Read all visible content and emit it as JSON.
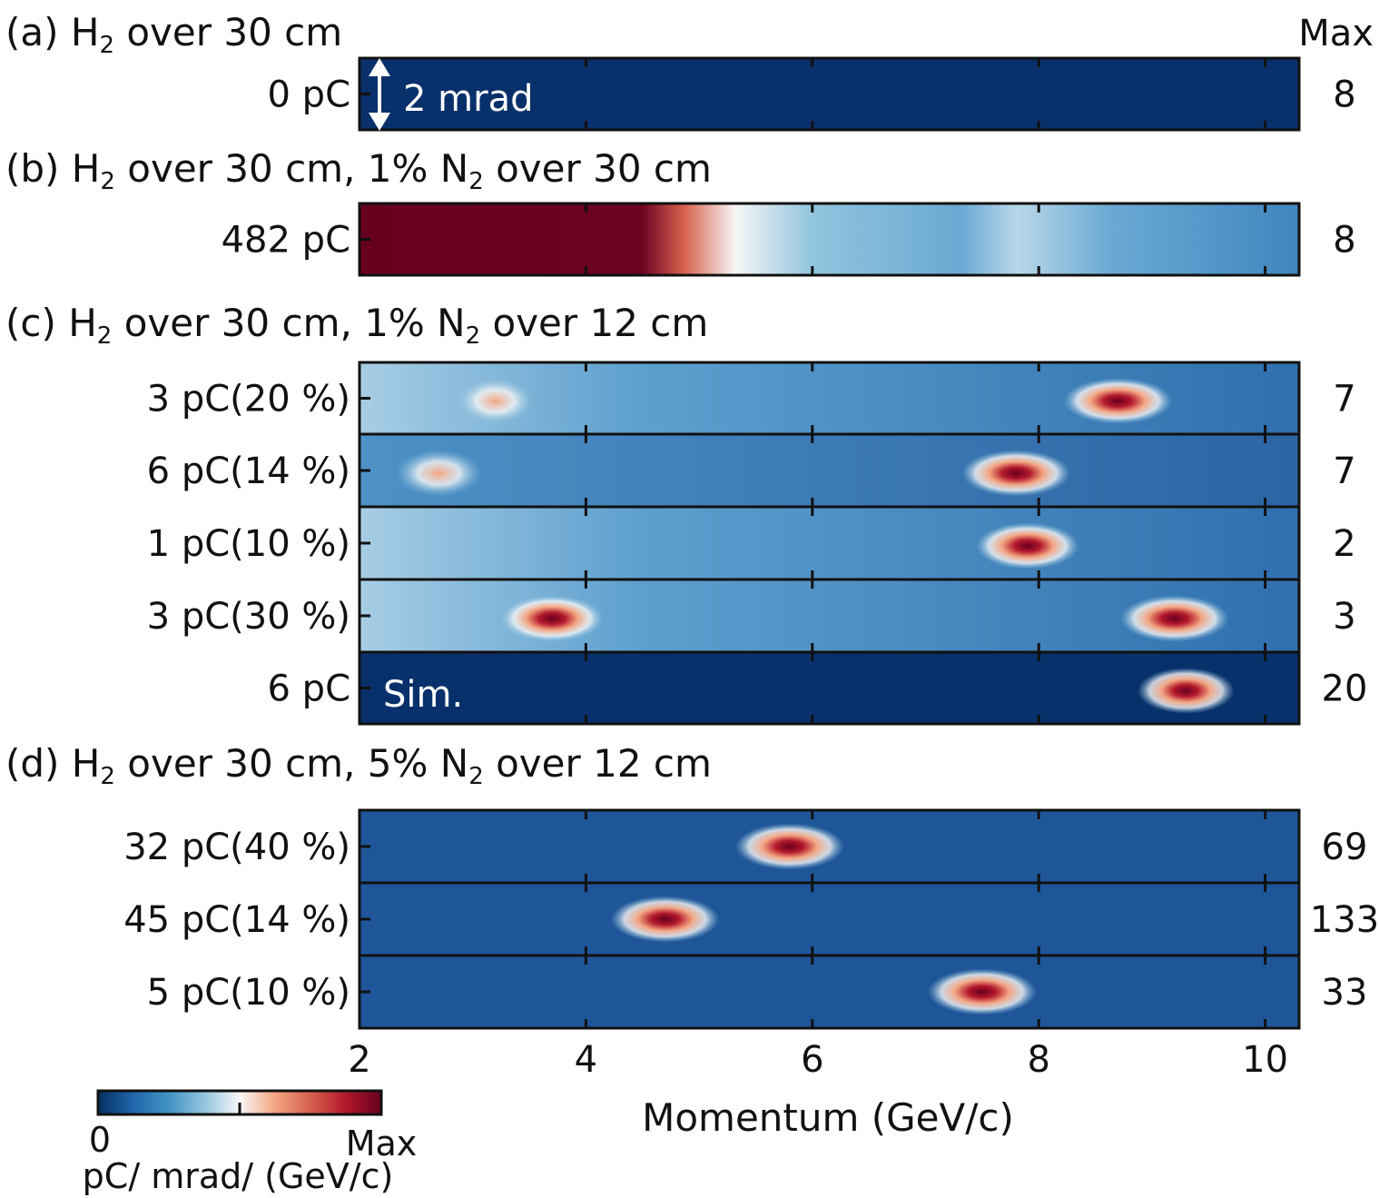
{
  "chart_data": {
    "type": "heatmap",
    "title": "",
    "xlabel": "Momentum (GeV/c)",
    "xlim": [
      2,
      10.3
    ],
    "x_ticks": [
      "2",
      "4",
      "6",
      "8",
      "10"
    ],
    "max_header": "Max",
    "colorbar": {
      "colormap": "RdBu_r",
      "colors": [
        "#053061",
        "#2166ac",
        "#4393c3",
        "#92c5de",
        "#f7f7f7",
        "#f4a582",
        "#d6604d",
        "#b2182b",
        "#67001f"
      ],
      "min_label": "0",
      "max_label": "Max",
      "label": "pC/ mrad/ (GeV/c)"
    },
    "annotations": {
      "scale_bar": "2 mrad",
      "sim": "Sim."
    },
    "sections": [
      {
        "title_parts": [
          "(a) H",
          "2",
          " over 30 cm"
        ],
        "rows": [
          {
            "label": "0 pC",
            "max": "8",
            "hotspots": []
          }
        ]
      },
      {
        "title_parts": [
          "(b) H",
          "2",
          " over 30 cm, 1% N",
          "2",
          " over 30 cm"
        ],
        "rows": [
          {
            "label": "482 pC",
            "max": "8",
            "hotspots": []
          }
        ]
      },
      {
        "title_parts": [
          "(c) H",
          "2",
          " over 30 cm, 1% N",
          "2",
          " over 12 cm"
        ],
        "rows": [
          {
            "label": "3 pC(20 %)",
            "max": "7",
            "hotspots": [
              {
                "p": 8.7,
                "intensity": 1.0
              },
              {
                "p": 3.2,
                "intensity": 0.45
              }
            ]
          },
          {
            "label": "6 pC(14 %)",
            "max": "7",
            "hotspots": [
              {
                "p": 7.8,
                "intensity": 1.0
              },
              {
                "p": 2.7,
                "intensity": 0.6
              }
            ]
          },
          {
            "label": "1 pC(10 %)",
            "max": "2",
            "hotspots": [
              {
                "p": 7.9,
                "intensity": 0.9
              }
            ]
          },
          {
            "label": "3 pC(30 %)",
            "max": "3",
            "hotspots": [
              {
                "p": 9.2,
                "intensity": 1.0
              },
              {
                "p": 3.7,
                "intensity": 0.9
              }
            ]
          },
          {
            "label": "6 pC",
            "max": "20",
            "hotspots": [
              {
                "p": 9.3,
                "intensity": 0.8
              }
            ]
          }
        ]
      },
      {
        "title_parts": [
          "(d) H",
          "2",
          " over 30 cm, 5% N",
          "2",
          " over 12 cm"
        ],
        "rows": [
          {
            "label": "32 pC(40 %)",
            "max": "69",
            "hotspots": [
              {
                "p": 5.8,
                "intensity": 1.0
              }
            ]
          },
          {
            "label": "45 pC(14 %)",
            "max": "133",
            "hotspots": [
              {
                "p": 4.7,
                "intensity": 1.0
              }
            ]
          },
          {
            "label": "5 pC(10 %)",
            "max": "33",
            "hotspots": [
              {
                "p": 7.5,
                "intensity": 1.0
              }
            ]
          }
        ]
      }
    ]
  }
}
